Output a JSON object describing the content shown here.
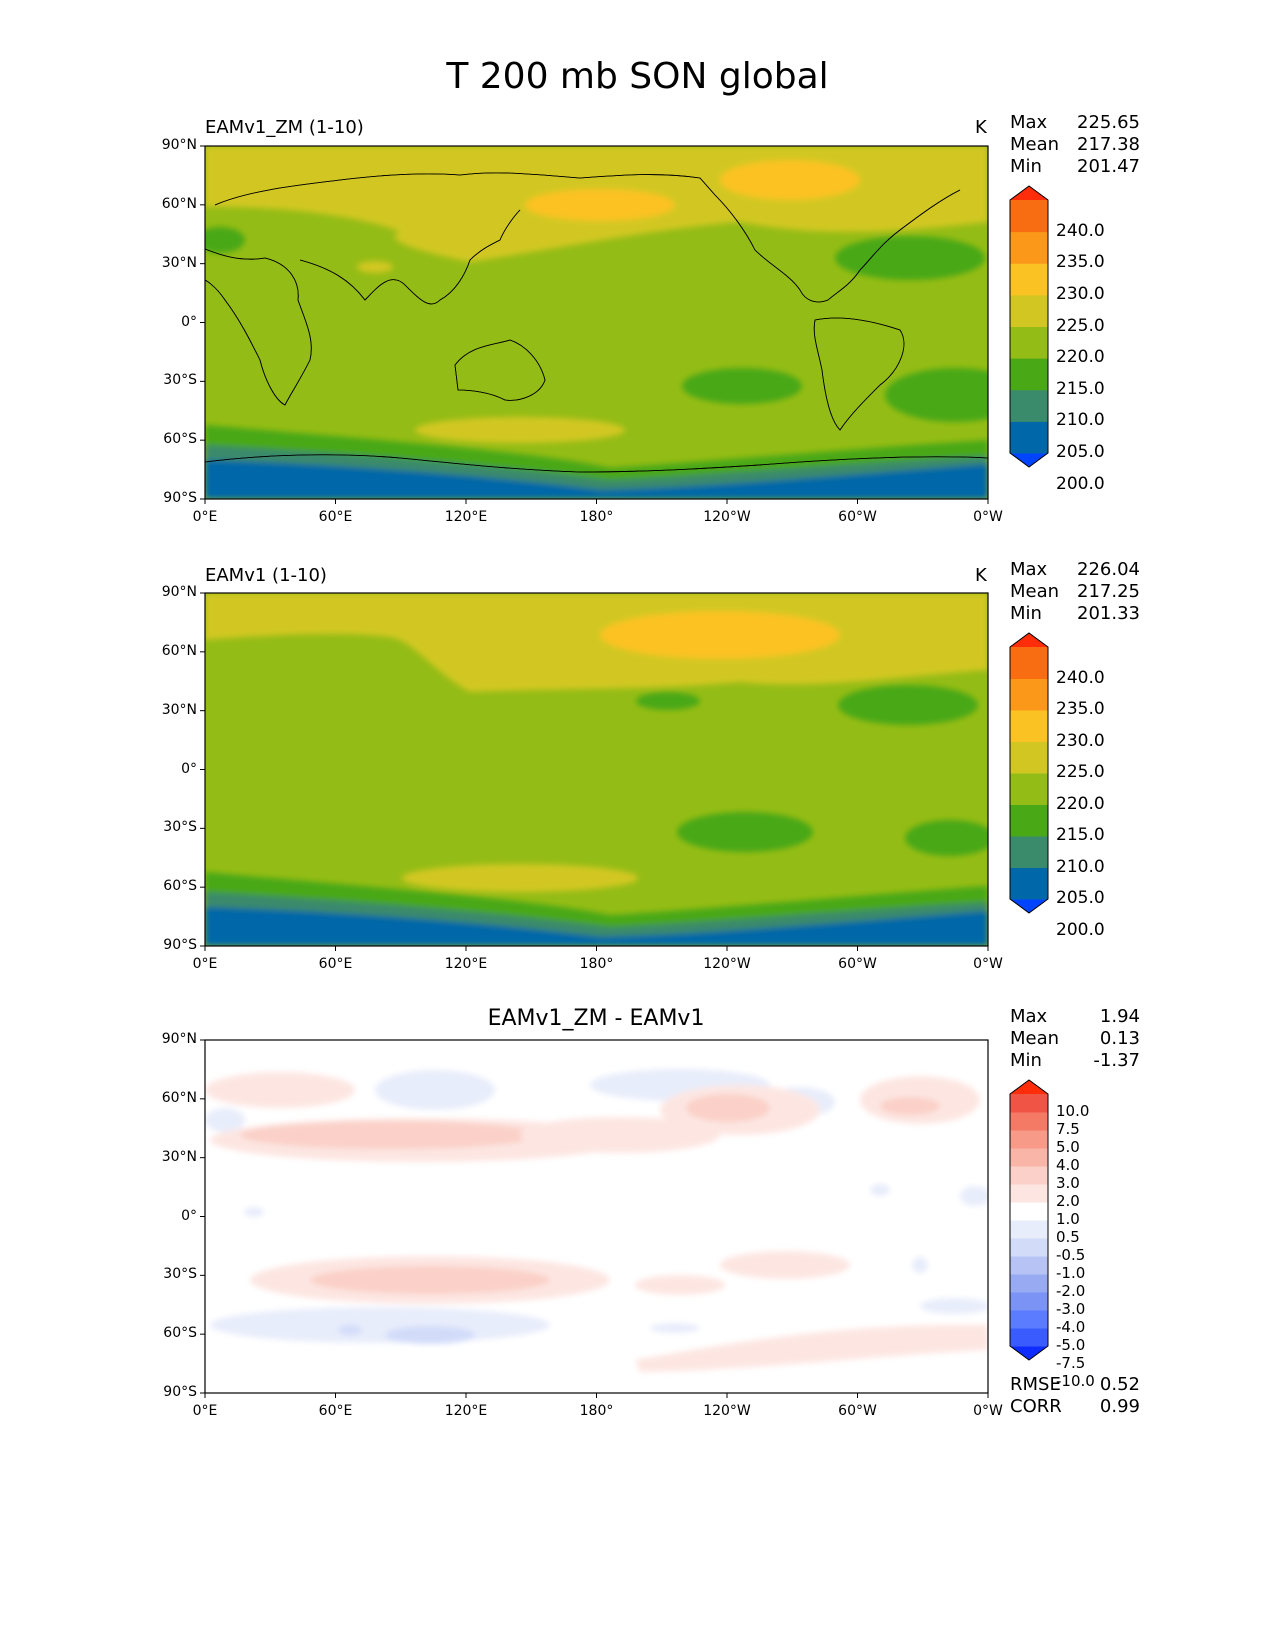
{
  "figure": {
    "title": "T 200 mb SON global"
  },
  "axes": {
    "x_ticks": [
      "0°E",
      "60°E",
      "120°E",
      "180°",
      "120°W",
      "60°W",
      "0°W"
    ],
    "y_ticks": [
      "90°N",
      "60°N",
      "30°N",
      "0°",
      "30°S",
      "60°S",
      "90°S"
    ]
  },
  "panels": [
    {
      "title": "EAMv1_ZM (1-10)",
      "units": "K",
      "stats": [
        {
          "label": "Max",
          "value": "225.65"
        },
        {
          "label": "Mean",
          "value": "217.38"
        },
        {
          "label": "Min",
          "value": "201.47"
        }
      ],
      "colorbar_labels": [
        "240.0",
        "235.0",
        "230.0",
        "225.0",
        "220.0",
        "215.0",
        "210.0",
        "205.0",
        "200.0"
      ]
    },
    {
      "title": "EAMv1 (1-10)",
      "units": "K",
      "stats": [
        {
          "label": "Max",
          "value": "226.04"
        },
        {
          "label": "Mean",
          "value": "217.25"
        },
        {
          "label": "Min",
          "value": "201.33"
        }
      ],
      "colorbar_labels": [
        "240.0",
        "235.0",
        "230.0",
        "225.0",
        "220.0",
        "215.0",
        "210.0",
        "205.0",
        "200.0"
      ]
    },
    {
      "title": "EAMv1_ZM - EAMv1",
      "stats": [
        {
          "label": "Max",
          "value": "1.94"
        },
        {
          "label": "Mean",
          "value": "0.13"
        },
        {
          "label": "Min",
          "value": "-1.37"
        }
      ],
      "colorbar_labels": [
        "10.0",
        "7.5",
        "5.0",
        "4.0",
        "3.0",
        "2.0",
        "1.0",
        "0.5",
        "-0.5",
        "-1.0",
        "-2.0",
        "-3.0",
        "-4.0",
        "-5.0",
        "-7.5",
        "-10.0"
      ],
      "metrics": [
        {
          "label": "RMSE",
          "value": "0.52"
        },
        {
          "label": "CORR",
          "value": "0.99"
        }
      ]
    }
  ],
  "colors": {
    "abs_levels": [
      "#0044ff",
      "#0068a8",
      "#3a8a6c",
      "#48a816",
      "#94bc16",
      "#d2c722",
      "#fbc224",
      "#fb981a",
      "#f86c12",
      "#ff2d0a"
    ],
    "diff_levels": [
      "#0f2cff",
      "#3a5cff",
      "#5b7cff",
      "#7a93f4",
      "#98abf2",
      "#b6c3f4",
      "#d2dcf9",
      "#e8edfb",
      "#ffffff",
      "#fde6e2",
      "#fbd0c8",
      "#f9b6a8",
      "#f79a88",
      "#f47a66",
      "#f05444",
      "#ff2d0a"
    ]
  }
}
